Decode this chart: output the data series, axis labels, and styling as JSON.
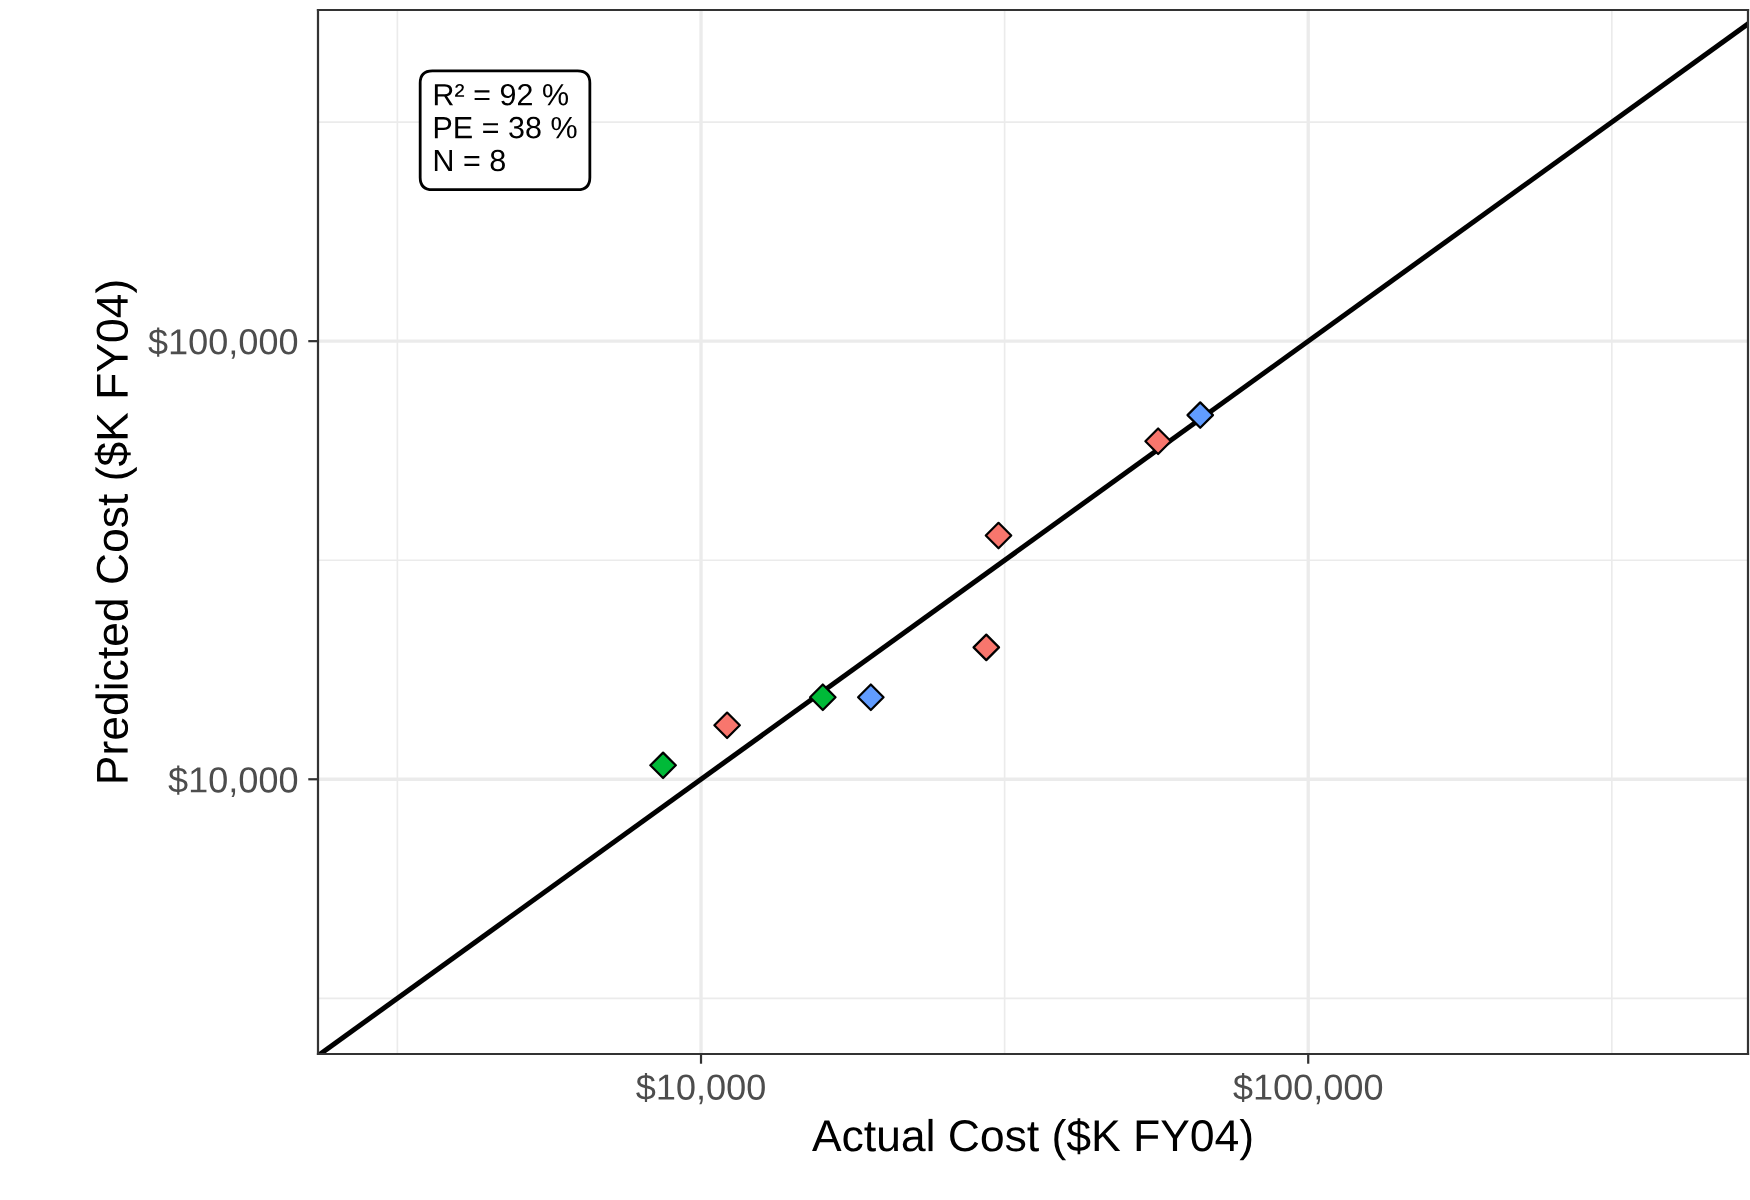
{
  "chart_data": {
    "type": "scatter",
    "xlabel": "Actual Cost ($K FY04)",
    "ylabel": "Predicted Cost ($K FY04)",
    "log": "xy",
    "grid": true,
    "marker": "diamond",
    "legend": false,
    "xlim": [
      2340,
      530000
    ],
    "ylim": [
      2360,
      570000
    ],
    "xticks": [
      {
        "value": 3162,
        "label": null
      },
      {
        "value": 10000,
        "label": "$10,000"
      },
      {
        "value": 31623,
        "label": null
      },
      {
        "value": 100000,
        "label": "$100,000"
      },
      {
        "value": 316228,
        "label": null
      }
    ],
    "yticks": [
      {
        "value": 3162,
        "label": null
      },
      {
        "value": 10000,
        "label": "$10,000"
      },
      {
        "value": 31623,
        "label": null
      },
      {
        "value": 100000,
        "label": "$100,000"
      },
      {
        "value": 316228,
        "label": null
      }
    ],
    "annotations": [
      "R² = 92 %\nPE = 38 %\nN = 8"
    ],
    "series": [
      {
        "type": "line",
        "color": "#000000",
        "x": [
          2360,
          530000
        ],
        "values": [
          2360,
          530000
        ],
        "marker": "none"
      },
      {
        "color": "#f8766d",
        "x": [
          11040,
          29500,
          30900,
          56600
        ],
        "values": [
          13280,
          20000,
          36000,
          59100
        ]
      },
      {
        "color": "#00ba38",
        "x": [
          8660,
          15870
        ],
        "values": [
          10760,
          15390
        ]
      },
      {
        "color": "#619cff",
        "x": [
          19040,
          66400
        ],
        "values": [
          15390,
          67800
        ]
      }
    ]
  }
}
